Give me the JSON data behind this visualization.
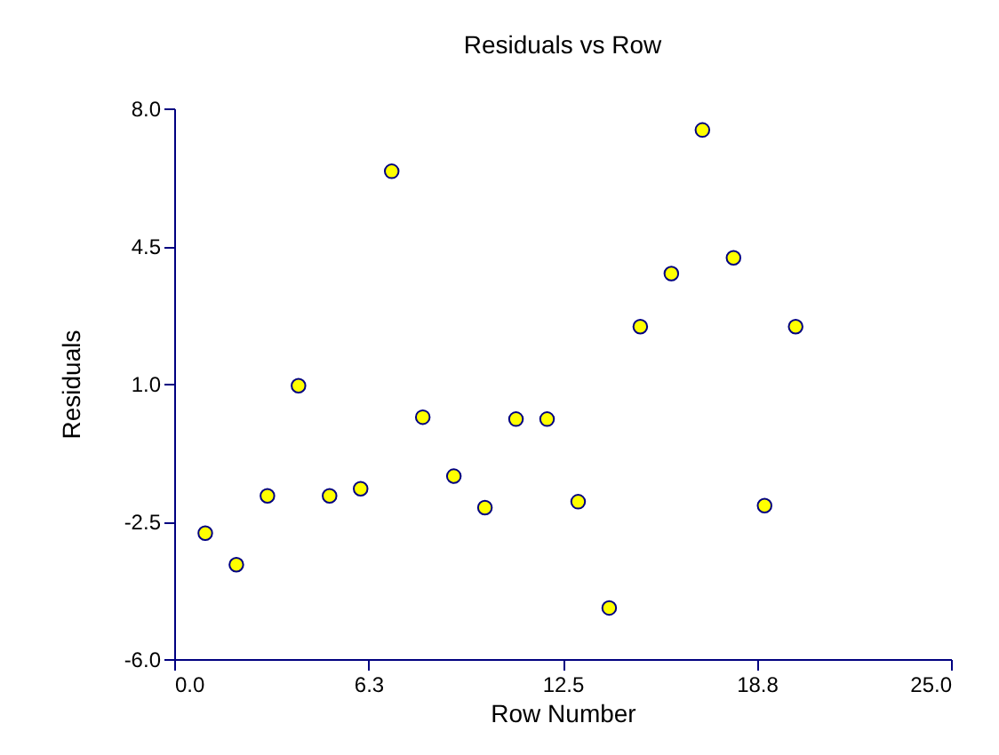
{
  "chart_data": {
    "type": "scatter",
    "title": "Residuals vs Row",
    "xlabel": "Row Number",
    "ylabel": "Residuals",
    "x": [
      1,
      2,
      3,
      4,
      5,
      6,
      7,
      8,
      9,
      10,
      11,
      12,
      13,
      14,
      15,
      16,
      17,
      18,
      19,
      20
    ],
    "series": [
      {
        "color": "#ffff00",
        "values": [
          -2.8,
          -3.6,
          -1.85,
          0.95,
          -1.85,
          -1.67,
          6.4,
          0.15,
          -1.35,
          -2.15,
          0.1,
          0.1,
          -2.0,
          -4.7,
          2.45,
          3.8,
          7.45,
          4.2,
          -2.1,
          2.45
        ]
      }
    ],
    "xlim": [
      0,
      25
    ],
    "xticks": [
      {
        "value": 0,
        "label": "0.0"
      },
      {
        "value": 6.25,
        "label": "6.3"
      },
      {
        "value": 12.5,
        "label": "12.5"
      },
      {
        "value": 18.75,
        "label": "18.8"
      },
      {
        "value": 25,
        "label": "25.0"
      }
    ],
    "ylim": [
      -6,
      8
    ],
    "yticks": [
      {
        "value": -6,
        "label": "-6.0"
      },
      {
        "value": -2.5,
        "label": "-2.5"
      },
      {
        "value": 1,
        "label": "1.0"
      },
      {
        "value": 4.5,
        "label": "4.5"
      },
      {
        "value": 8,
        "label": "8.0"
      }
    ],
    "marker": "circle",
    "grid": false
  }
}
